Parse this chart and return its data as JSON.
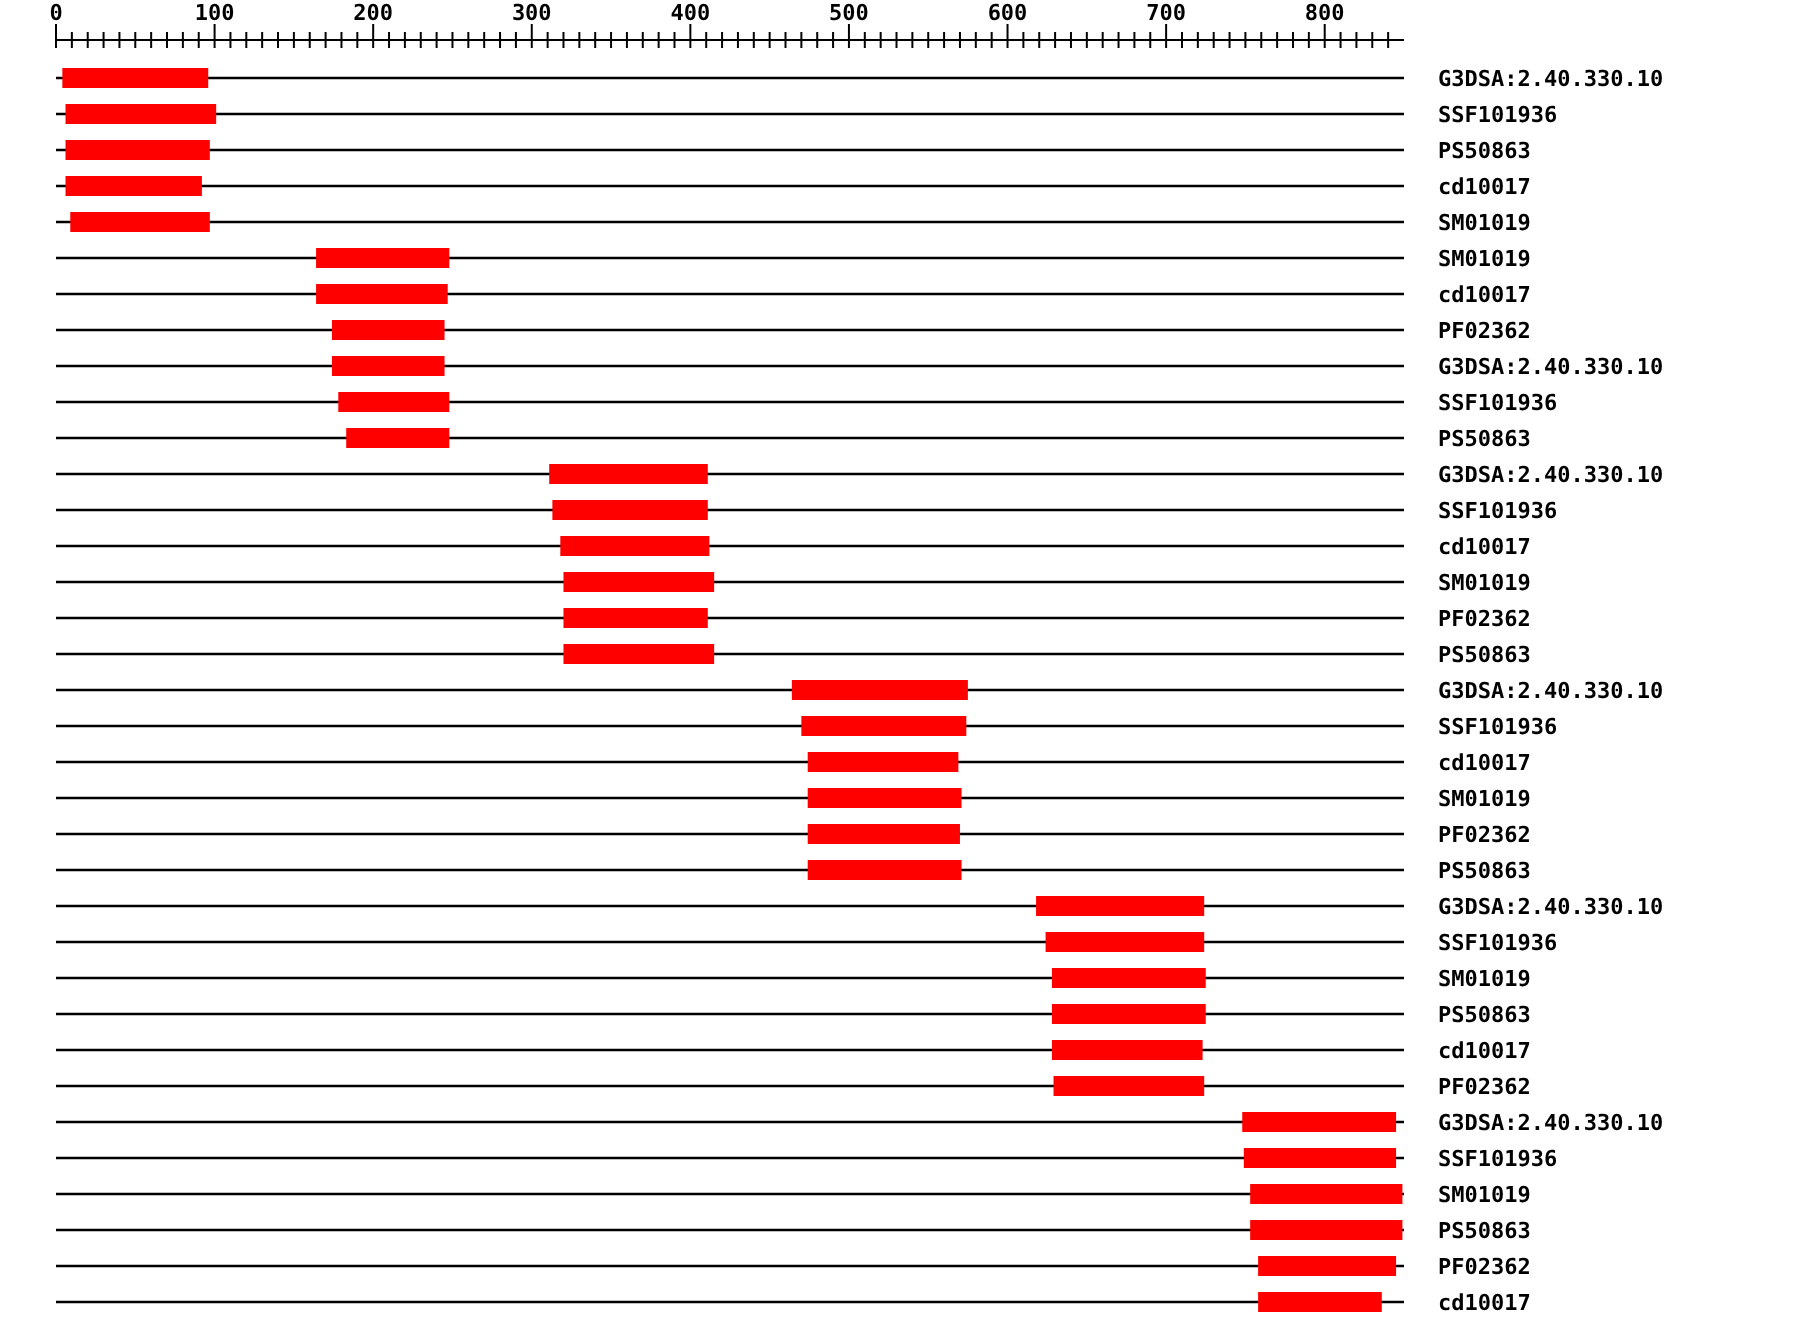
{
  "chart_data": {
    "type": "bar",
    "orientation": "horizontal",
    "grid": "y",
    "color": "#ff0000",
    "categories": [
      "G3DSA:2.40.330.10",
      "SSF101936",
      "PS50863",
      "cd10017",
      "SM01019",
      "SM01019",
      "cd10017",
      "PF02362",
      "G3DSA:2.40.330.10",
      "SSF101936",
      "PS50863",
      "G3DSA:2.40.330.10",
      "SSF101936",
      "cd10017",
      "SM01019",
      "PF02362",
      "PS50863",
      "G3DSA:2.40.330.10",
      "SSF101936",
      "cd10017",
      "SM01019",
      "PF02362",
      "PS50863",
      "G3DSA:2.40.330.10",
      "SSF101936",
      "SM01019",
      "PS50863",
      "cd10017",
      "PF02362",
      "G3DSA:2.40.330.10",
      "SSF101936",
      "SM01019",
      "PS50863",
      "PF02362",
      "cd10017"
    ],
    "base": [
      4,
      6,
      6,
      6,
      9,
      164,
      164,
      174,
      174,
      178,
      183,
      311,
      313,
      318,
      320,
      320,
      320,
      464,
      470,
      474,
      474,
      474,
      474,
      618,
      624,
      628,
      628,
      628,
      629,
      748,
      749,
      753,
      753,
      758,
      758
    ],
    "values": [
      92,
      95,
      91,
      86,
      88,
      84,
      83,
      71,
      71,
      70,
      65,
      100,
      98,
      94,
      95,
      91,
      95,
      111,
      104,
      95,
      97,
      96,
      97,
      106,
      100,
      97,
      97,
      95,
      95,
      97,
      96,
      96,
      96,
      87,
      78
    ],
    "xlim": [
      0,
      850
    ],
    "xticks": [
      0,
      {
        "value": 10,
        "label": null
      },
      {
        "value": 20,
        "label": null
      },
      {
        "value": 30,
        "label": null
      },
      {
        "value": 40,
        "label": null
      },
      {
        "value": 50,
        "label": null
      },
      {
        "value": 60,
        "label": null
      },
      {
        "value": 70,
        "label": null
      },
      {
        "value": 80,
        "label": null
      },
      {
        "value": 90,
        "label": null
      },
      100,
      {
        "value": 110,
        "label": null
      },
      {
        "value": 120,
        "label": null
      },
      {
        "value": 130,
        "label": null
      },
      {
        "value": 140,
        "label": null
      },
      {
        "value": 150,
        "label": null
      },
      {
        "value": 160,
        "label": null
      },
      {
        "value": 170,
        "label": null
      },
      {
        "value": 180,
        "label": null
      },
      {
        "value": 190,
        "label": null
      },
      200,
      {
        "value": 210,
        "label": null
      },
      {
        "value": 220,
        "label": null
      },
      {
        "value": 230,
        "label": null
      },
      {
        "value": 240,
        "label": null
      },
      {
        "value": 250,
        "label": null
      },
      {
        "value": 260,
        "label": null
      },
      {
        "value": 270,
        "label": null
      },
      {
        "value": 280,
        "label": null
      },
      {
        "value": 290,
        "label": null
      },
      300,
      {
        "value": 310,
        "label": null
      },
      {
        "value": 320,
        "label": null
      },
      {
        "value": 330,
        "label": null
      },
      {
        "value": 340,
        "label": null
      },
      {
        "value": 350,
        "label": null
      },
      {
        "value": 360,
        "label": null
      },
      {
        "value": 370,
        "label": null
      },
      {
        "value": 380,
        "label": null
      },
      {
        "value": 390,
        "label": null
      },
      400,
      {
        "value": 410,
        "label": null
      },
      {
        "value": 420,
        "label": null
      },
      {
        "value": 430,
        "label": null
      },
      {
        "value": 440,
        "label": null
      },
      {
        "value": 450,
        "label": null
      },
      {
        "value": 460,
        "label": null
      },
      {
        "value": 470,
        "label": null
      },
      {
        "value": 480,
        "label": null
      },
      {
        "value": 490,
        "label": null
      },
      500,
      {
        "value": 510,
        "label": null
      },
      {
        "value": 520,
        "label": null
      },
      {
        "value": 530,
        "label": null
      },
      {
        "value": 540,
        "label": null
      },
      {
        "value": 550,
        "label": null
      },
      {
        "value": 560,
        "label": null
      },
      {
        "value": 570,
        "label": null
      },
      {
        "value": 580,
        "label": null
      },
      {
        "value": 590,
        "label": null
      },
      600,
      {
        "value": 610,
        "label": null
      },
      {
        "value": 620,
        "label": null
      },
      {
        "value": 630,
        "label": null
      },
      {
        "value": 640,
        "label": null
      },
      {
        "value": 650,
        "label": null
      },
      {
        "value": 660,
        "label": null
      },
      {
        "value": 670,
        "label": null
      },
      {
        "value": 680,
        "label": null
      },
      {
        "value": 690,
        "label": null
      },
      700,
      {
        "value": 710,
        "label": null
      },
      {
        "value": 720,
        "label": null
      },
      {
        "value": 730,
        "label": null
      },
      {
        "value": 740,
        "label": null
      },
      {
        "value": 750,
        "label": null
      },
      {
        "value": 760,
        "label": null
      },
      {
        "value": 770,
        "label": null
      },
      {
        "value": 780,
        "label": null
      },
      {
        "value": 790,
        "label": null
      },
      800,
      {
        "value": 810,
        "label": null
      },
      {
        "value": 820,
        "label": null
      },
      {
        "value": 830,
        "label": null
      },
      {
        "value": 840,
        "label": null
      }
    ]
  }
}
